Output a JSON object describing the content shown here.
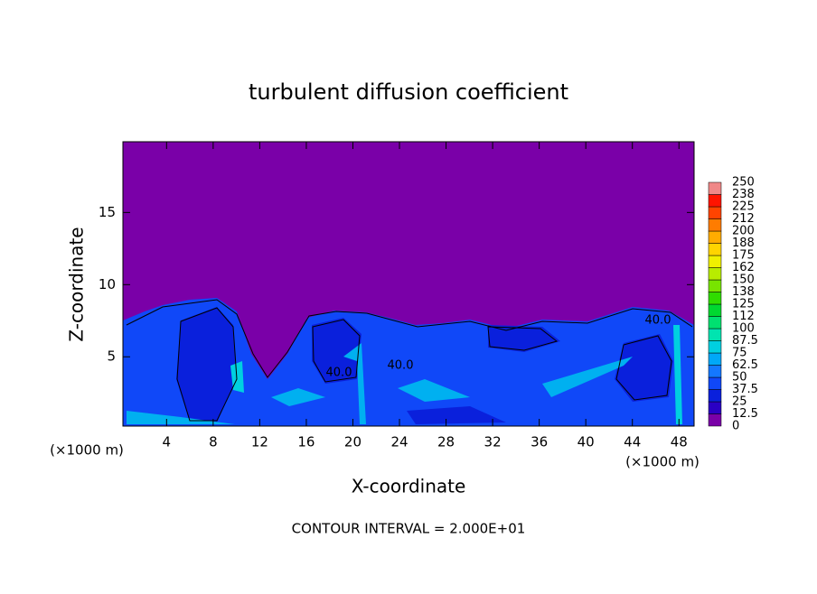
{
  "chart_data": {
    "type": "contour",
    "title": "turbulent diffusion coefficient",
    "x_label": "X-coordinate",
    "y_label": "Z-coordinate",
    "x_unit": "(×1000 m)",
    "note": "CONTOUR INTERVAL = 2.000E+01",
    "xlim": [
      0.25,
      49.3
    ],
    "ylim": [
      0.2,
      19.9
    ],
    "xticks": [
      4,
      8,
      12,
      16,
      20,
      24,
      28,
      32,
      36,
      40,
      44,
      48
    ],
    "yticks": [
      5,
      10,
      15
    ],
    "contour_labels": [
      "40.0",
      "40.0",
      "40.0"
    ],
    "colorbar": {
      "levels": [
        0,
        12.5,
        25,
        37.5,
        50,
        62.5,
        75,
        87.5,
        100,
        112,
        125,
        138,
        150,
        162,
        175,
        188,
        200,
        212,
        225,
        238,
        250
      ],
      "colors": [
        "#7a00a8",
        "#2a00c4",
        "#0a20dc",
        "#1048f8",
        "#1478ff",
        "#00a8f8",
        "#00d0e0",
        "#00e4b0",
        "#00e070",
        "#00d830",
        "#30dc00",
        "#78e400",
        "#b8ec00",
        "#f0f000",
        "#ffd400",
        "#ffac00",
        "#ff7c00",
        "#ff4400",
        "#ff1400",
        "#f08888"
      ]
    }
  }
}
